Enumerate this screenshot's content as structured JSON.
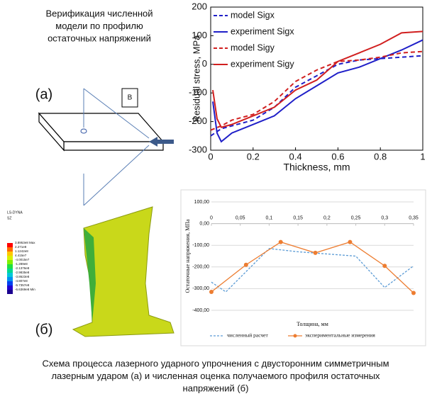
{
  "figure": {
    "title_lines": [
      "Верификация численной",
      "модели по профилю",
      "остаточных напряжений"
    ],
    "label_a": "(а)",
    "label_b": "(б)",
    "box_label": "B",
    "fe_header": [
      "LS-DYNA",
      "SZ"
    ],
    "fe_legend": [
      "3.8953e8 Max",
      "2.271e8",
      "1.1242e8",
      "4.415e7",
      "-4.0015e7",
      "-1.289e8",
      "-2.1376e8",
      "-2.9835e8",
      "-3.8623e8",
      "-4.807e8",
      "-5.7357e8",
      "-6.6369e8 Min"
    ],
    "caption_lines": [
      "Схема процесса лазерного ударного упрочнения с двусторонним симметричным",
      "лазерным ударом (а) и численная оценка получаемого  профиля остаточных",
      "напряжений (б)"
    ]
  },
  "chart_data": [
    {
      "type": "line",
      "xlabel": "Thickness, mm",
      "ylabel": "Residual stress, MPa",
      "xlim": [
        0,
        1
      ],
      "ylim": [
        -300,
        200
      ],
      "xticks": [
        0,
        0.2,
        0.4,
        0.6,
        0.8,
        1
      ],
      "yticks": [
        -300,
        -200,
        -100,
        0,
        100,
        200
      ],
      "legend": "upper left",
      "series": [
        {
          "name": "model Sigx",
          "color": "#1f1fc8",
          "dash": true,
          "x": [
            0,
            0.02,
            0.05,
            0.1,
            0.2,
            0.3,
            0.4,
            0.5,
            0.6,
            0.7,
            0.8,
            0.9,
            1
          ],
          "values": [
            -250,
            -240,
            -225,
            -215,
            -195,
            -150,
            -80,
            -40,
            0,
            15,
            20,
            25,
            30
          ]
        },
        {
          "name": "experiment Sigx",
          "color": "#1f1fc8",
          "dash": false,
          "x": [
            0.01,
            0.03,
            0.05,
            0.1,
            0.2,
            0.3,
            0.4,
            0.5,
            0.6,
            0.7,
            0.8,
            0.9,
            1
          ],
          "values": [
            -130,
            -240,
            -270,
            -240,
            -210,
            -180,
            -120,
            -75,
            -30,
            -10,
            20,
            50,
            85
          ]
        },
        {
          "name": "model Sigy",
          "color": "#d11f1f",
          "dash": true,
          "x": [
            0,
            0.05,
            0.1,
            0.2,
            0.3,
            0.4,
            0.5,
            0.6,
            0.7,
            0.8,
            0.9,
            1
          ],
          "values": [
            -230,
            -215,
            -195,
            -175,
            -130,
            -60,
            -20,
            10,
            15,
            25,
            40,
            45
          ]
        },
        {
          "name": "experiment Sigy",
          "color": "#d11f1f",
          "dash": false,
          "x": [
            0.01,
            0.03,
            0.05,
            0.1,
            0.2,
            0.3,
            0.4,
            0.5,
            0.6,
            0.7,
            0.8,
            0.9,
            1
          ],
          "values": [
            -90,
            -190,
            -220,
            -210,
            -180,
            -150,
            -90,
            -55,
            10,
            40,
            70,
            110,
            115
          ]
        }
      ]
    },
    {
      "type": "line",
      "xlabel": "Толщина, мм",
      "ylabel": "Остаточные напряжения, МПа",
      "xlim": [
        0,
        0.35
      ],
      "ylim": [
        -400,
        100
      ],
      "xticks": [
        0,
        {
          "value": 0.05,
          "label": "0,05"
        },
        {
          "value": 0.1,
          "label": "0,1"
        },
        {
          "value": 0.15,
          "label": "0,15"
        },
        {
          "value": 0.2,
          "label": "0,2"
        },
        {
          "value": 0.25,
          "label": "0,25"
        },
        {
          "value": 0.3,
          "label": "0,3"
        },
        {
          "value": 0.35,
          "label": "0,35"
        }
      ],
      "yticks": [
        {
          "value": 100,
          "label": "100,00"
        },
        {
          "value": 0,
          "label": "0,00"
        },
        {
          "value": -100,
          "label": "-100,00"
        },
        {
          "value": -200,
          "label": "-200,00"
        },
        {
          "value": -300,
          "label": "-300,00"
        },
        {
          "value": -400,
          "label": "-400,00"
        }
      ],
      "grid": true,
      "legend": "bottom",
      "series": [
        {
          "name": "численный расчет",
          "color": "#5b9bd5",
          "dash": true,
          "x": [
            0,
            0.025,
            0.1,
            0.15,
            0.2,
            0.25,
            0.3,
            0.35
          ],
          "values": [
            -270,
            -315,
            -115,
            -130,
            -140,
            -150,
            -295,
            -195
          ]
        },
        {
          "name": "экспериментальные измерения",
          "color": "#ed7d31",
          "dash": false,
          "markers": true,
          "x": [
            0,
            0.06,
            0.12,
            0.18,
            0.24,
            0.3,
            0.35
          ],
          "values": [
            -315,
            -190,
            -85,
            -135,
            -85,
            -195,
            -320
          ]
        }
      ]
    }
  ]
}
